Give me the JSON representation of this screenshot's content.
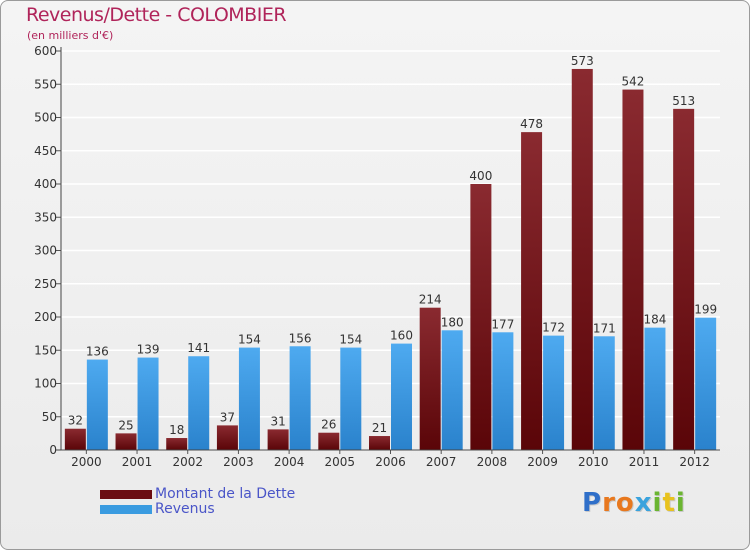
{
  "title": "Revenus/Dette - COLOMBIER",
  "subtitle": "(en milliers d'€)",
  "chart_data": {
    "type": "bar",
    "title": "Revenus/Dette - COLOMBIER",
    "subtitle": "(en milliers d'€)",
    "categories": [
      "2000",
      "2001",
      "2002",
      "2003",
      "2004",
      "2005",
      "2006",
      "2007",
      "2008",
      "2009",
      "2010",
      "2011",
      "2012"
    ],
    "series": [
      {
        "name": "Montant de la Dette",
        "color": "#7a1218",
        "values": [
          32,
          25,
          18,
          37,
          31,
          26,
          21,
          214,
          400,
          478,
          573,
          542,
          513
        ]
      },
      {
        "name": "Revenus",
        "color": "#3a9be0",
        "values": [
          136,
          139,
          141,
          154,
          156,
          154,
          160,
          180,
          177,
          172,
          171,
          184,
          199
        ]
      }
    ],
    "ylim": [
      0,
      600
    ],
    "yticks": [
      0,
      50,
      100,
      150,
      200,
      250,
      300,
      350,
      400,
      450,
      500,
      550,
      600
    ],
    "grid": true,
    "legend_position": "bottom-left"
  },
  "legend": [
    {
      "label": "Montant de la Dette",
      "color": "#6b0d12"
    },
    {
      "label": "Revenus",
      "color": "#3a9be0"
    }
  ],
  "logo": {
    "letters": [
      "P",
      "r",
      "o",
      "x",
      "i",
      "t",
      "i"
    ],
    "colors": [
      "#2f6fc9",
      "#e8781e",
      "#e8781e",
      "#3aa3dd",
      "#6bb531",
      "#e8c21e",
      "#6bb531"
    ]
  }
}
